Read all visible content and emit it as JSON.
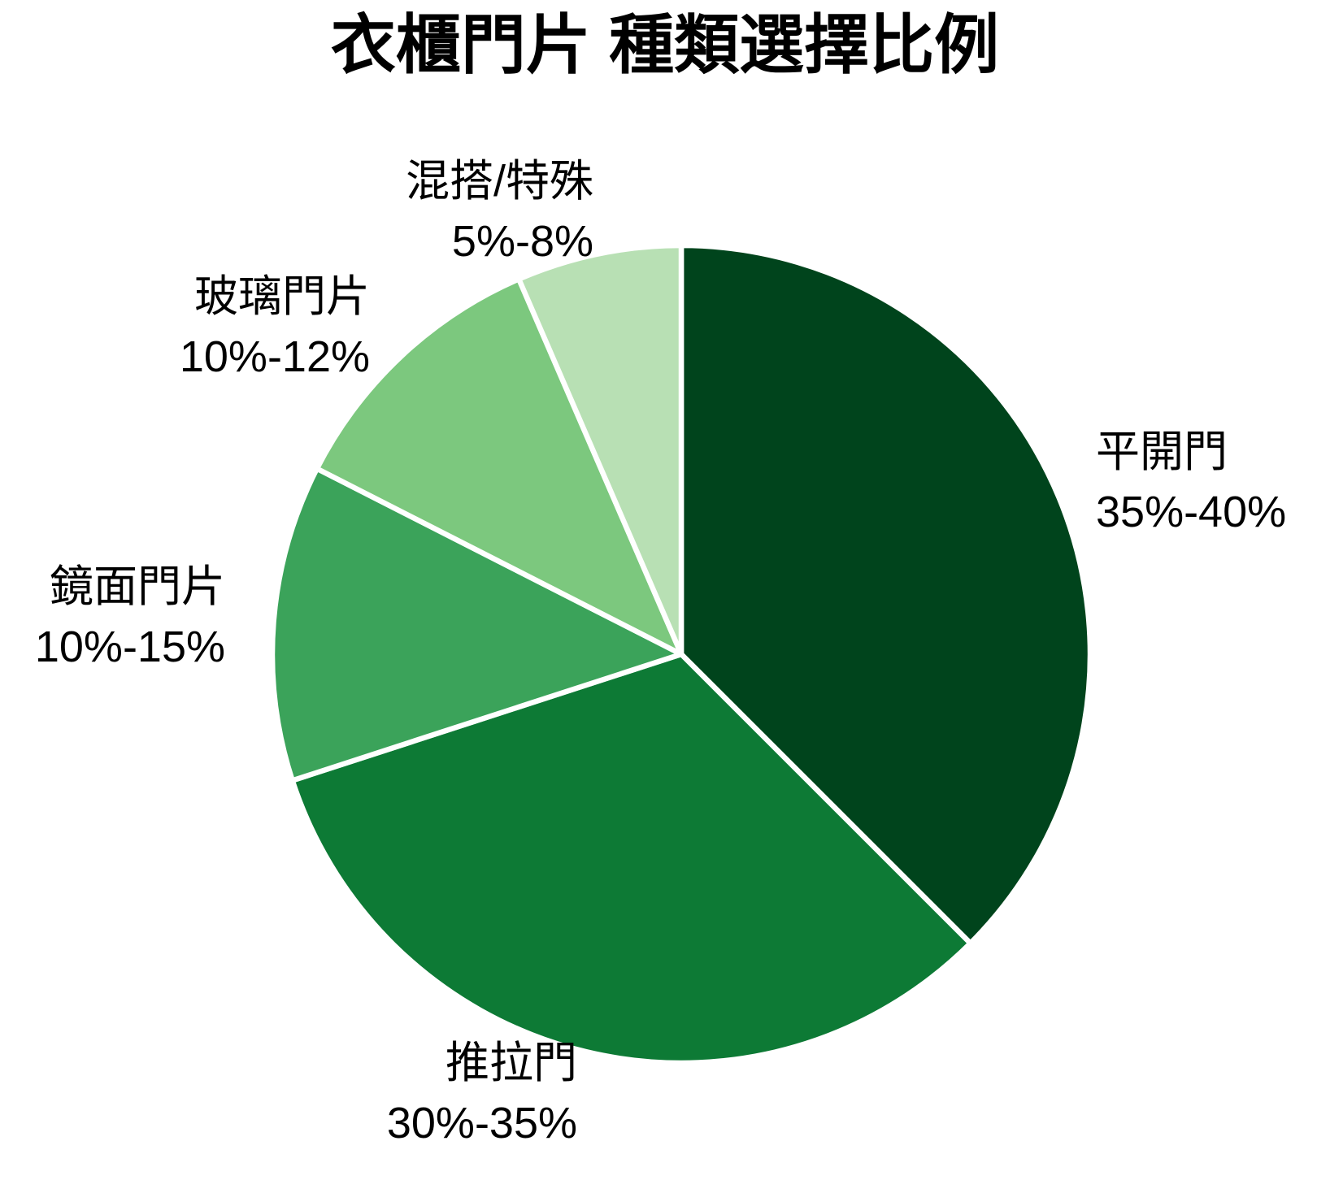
{
  "title": "衣櫃門片 種類選擇比例",
  "chart_data": {
    "type": "pie",
    "title": "衣櫃門片 種類選擇比例",
    "start_angle_deg": 0,
    "direction": "clockwise",
    "legend": "none",
    "background": "#ffffff",
    "slice_border_color": "#ffffff",
    "slice_border_width": 6.5,
    "label_text_color": "#000000",
    "slices": [
      {
        "label": "平開門",
        "range_label": "35%-40%",
        "value": 37.5,
        "color": "#00441c"
      },
      {
        "label": "推拉門",
        "range_label": "30%-35%",
        "value": 32.5,
        "color": "#0d7a35"
      },
      {
        "label": "鏡面門片",
        "range_label": "10%-15%",
        "value": 12.5,
        "color": "#3ba35a"
      },
      {
        "label": "玻璃門片",
        "range_label": "10%-12%",
        "value": 11,
        "color": "#7cc87e"
      },
      {
        "label": "混搭/特殊",
        "range_label": "5%-8%",
        "value": 6.5,
        "color": "#b8e0b4"
      }
    ]
  }
}
